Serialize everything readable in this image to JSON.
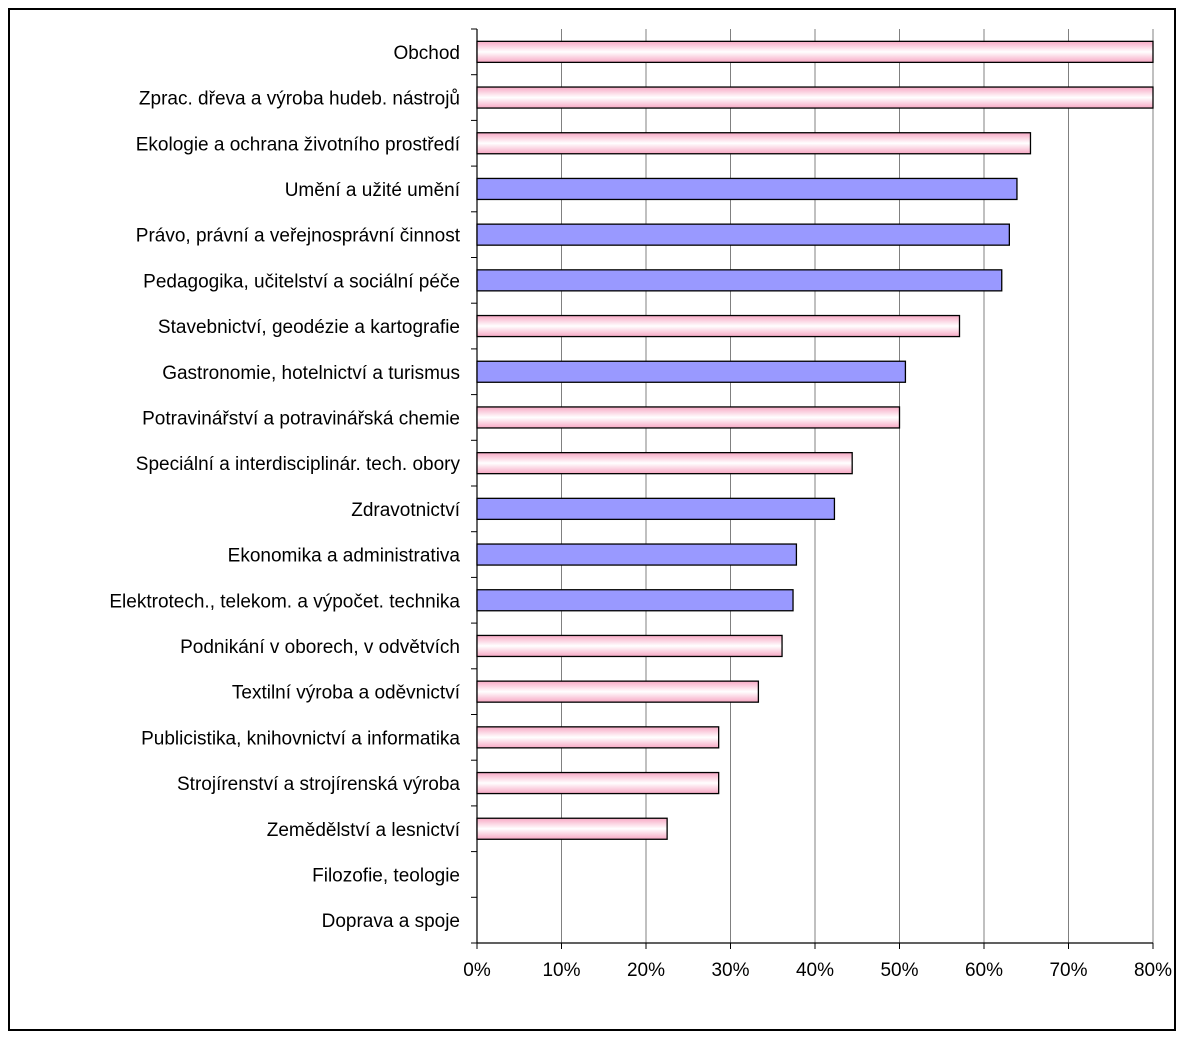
{
  "chart_data": {
    "type": "bar",
    "orientation": "horizontal",
    "title": "",
    "xlabel": "",
    "ylabel": "",
    "xlim": [
      0,
      80
    ],
    "x_ticks": [
      "0%",
      "10%",
      "20%",
      "30%",
      "40%",
      "50%",
      "60%",
      "70%",
      "80%"
    ],
    "grid": "vertical",
    "legend": "none",
    "colors": {
      "pink": "#ffd6e4",
      "blue": "#9999ff",
      "edge": "#000000",
      "grid": "#808080"
    },
    "categories": [
      "Obchod",
      "Zprac. dřeva a výroba hudeb. nástrojů",
      "Ekologie a ochrana životního prostředí",
      "Umění a užité umění",
      "Právo, právní a veřejnosprávní činnost",
      "Pedagogika, učitelství a sociální péče",
      "Stavebnictví, geodézie a kartografie",
      "Gastronomie, hotelnictví a turismus",
      "Potravinářství a potravinářská chemie",
      "Speciální a interdisciplinár. tech. obory",
      "Zdravotnictví",
      "Ekonomika a administrativa",
      "Elektrotech., telekom. a výpočet. technika",
      "Podnikání v oborech, v odvětvích",
      "Textilní výroba a oděvnictví",
      "Publicistika, knihovnictví a informatika",
      "Strojírenství a strojírenská výroba",
      "Zemědělství a lesnictví",
      "Filozofie, teologie",
      "Doprava a spoje"
    ],
    "values": [
      80,
      80,
      65.5,
      63.9,
      63,
      62.1,
      57.1,
      50.7,
      50,
      44.4,
      42.3,
      37.8,
      37.4,
      36.1,
      33.3,
      28.6,
      28.6,
      22.5,
      0,
      0
    ],
    "bar_colors": [
      "pink",
      "pink",
      "pink",
      "blue",
      "blue",
      "blue",
      "pink",
      "blue",
      "pink",
      "pink",
      "blue",
      "blue",
      "blue",
      "pink",
      "pink",
      "pink",
      "pink",
      "pink",
      "pink",
      "pink"
    ]
  }
}
